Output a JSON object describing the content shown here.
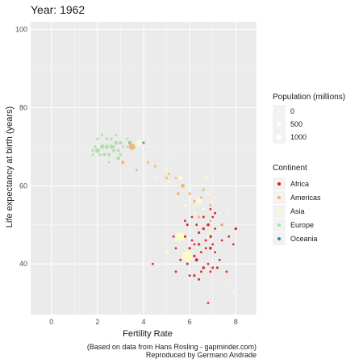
{
  "chart_data": {
    "type": "scatter",
    "title": "Year: 1962",
    "xlabel": "Fertility Rate",
    "ylabel": "Life expectancy at birth (years)",
    "xlim": [
      -0.9,
      8.9
    ],
    "ylim": [
      27,
      102
    ],
    "x_ticks": [
      0,
      2,
      4,
      6,
      8
    ],
    "y_ticks": [
      40,
      60,
      80,
      100
    ],
    "grid": true,
    "legend_position": "right",
    "size_legend": {
      "title": "Population (millions)",
      "entries": [
        {
          "label": "0",
          "value": 0
        },
        {
          "label": "500",
          "value": 500
        },
        {
          "label": "1000",
          "value": 1000
        }
      ]
    },
    "color_legend": {
      "title": "Continent",
      "entries": [
        {
          "label": "Africa",
          "color": "#d7191c"
        },
        {
          "label": "Americas",
          "color": "#fdae61"
        },
        {
          "label": "Asia",
          "color": "#ffffbf"
        },
        {
          "label": "Europe",
          "color": "#abdda4"
        },
        {
          "label": "Oceania",
          "color": "#2b83ba"
        }
      ]
    },
    "caption": [
      "(Based on data from Hans Rosling - gapminder.com)",
      "Reproduced by Germano Andrade"
    ],
    "series": [
      {
        "name": "Africa",
        "color": "#d7191c",
        "points": [
          [
            6.8,
            30
          ],
          [
            6.4,
            36
          ],
          [
            6.5,
            38
          ],
          [
            6.2,
            37
          ],
          [
            6.9,
            38
          ],
          [
            6.0,
            37
          ],
          [
            7.0,
            39
          ],
          [
            7.2,
            39
          ],
          [
            6.6,
            39
          ],
          [
            5.4,
            38
          ],
          [
            7.6,
            38
          ],
          [
            5.9,
            40
          ],
          [
            6.3,
            41
          ],
          [
            6.2,
            42
          ],
          [
            6.8,
            40
          ],
          [
            7.3,
            41
          ],
          [
            4.4,
            40
          ],
          [
            5.6,
            41
          ],
          [
            6.5,
            43
          ],
          [
            6.9,
            44
          ],
          [
            7.1,
            43
          ],
          [
            6.0,
            44
          ],
          [
            5.4,
            44
          ],
          [
            6.7,
            46
          ],
          [
            7.4,
            46
          ],
          [
            6.1,
            46
          ],
          [
            6.9,
            47
          ],
          [
            7.7,
            47
          ],
          [
            5.8,
            47
          ],
          [
            6.4,
            48
          ],
          [
            7.1,
            49
          ],
          [
            6.6,
            49
          ],
          [
            5.9,
            50
          ],
          [
            6.8,
            50
          ],
          [
            7.4,
            50
          ],
          [
            6.3,
            50
          ],
          [
            7.0,
            52
          ],
          [
            7.1,
            53
          ],
          [
            6.1,
            52
          ],
          [
            5.8,
            51
          ],
          [
            6.6,
            52
          ],
          [
            6.9,
            54
          ],
          [
            7.0,
            45
          ],
          [
            6.4,
            45
          ],
          [
            5.3,
            47
          ],
          [
            6.2,
            45
          ],
          [
            6.7,
            44
          ],
          [
            7.9,
            45
          ],
          [
            8.0,
            49
          ]
        ],
        "pops": [
          1,
          2,
          1,
          3,
          1,
          1,
          2,
          3,
          8,
          1,
          1,
          2,
          20,
          5,
          1,
          1,
          1,
          2,
          1,
          10,
          1,
          4,
          1,
          2,
          1,
          1,
          10,
          1,
          3,
          4,
          1,
          6,
          3,
          10,
          2,
          1,
          1,
          1,
          1,
          1,
          2,
          1,
          1,
          5,
          1,
          1,
          1,
          1,
          6
        ]
      },
      {
        "name": "Americas",
        "color": "#fdae61",
        "points": [
          [
            3.5,
            70
          ],
          [
            3.1,
            66
          ],
          [
            4.2,
            66
          ],
          [
            3.7,
            64
          ],
          [
            4.5,
            65
          ],
          [
            5.1,
            63
          ],
          [
            5.0,
            62
          ],
          [
            5.7,
            60
          ],
          [
            5.5,
            58
          ],
          [
            6.0,
            58
          ],
          [
            6.2,
            56
          ],
          [
            6.6,
            59
          ],
          [
            5.4,
            62
          ],
          [
            6.5,
            57
          ],
          [
            6.9,
            55
          ],
          [
            6.4,
            52
          ],
          [
            6.9,
            51
          ],
          [
            7.4,
            50
          ]
        ],
        "pops": [
          186,
          18,
          1,
          3,
          2,
          1,
          3,
          40,
          10,
          4,
          3,
          3,
          1,
          1,
          2,
          4,
          1,
          1
        ]
      },
      {
        "name": "Asia",
        "color": "#ffffbf",
        "points": [
          [
            5.9,
            42
          ],
          [
            5.6,
            47
          ],
          [
            6.8,
            47
          ],
          [
            6.0,
            57
          ],
          [
            5.8,
            55
          ],
          [
            6.8,
            58
          ],
          [
            6.4,
            56
          ],
          [
            6.3,
            55
          ],
          [
            5.3,
            68
          ],
          [
            5.0,
            64
          ],
          [
            5.6,
            62
          ],
          [
            6.7,
            62
          ],
          [
            4.5,
            62
          ],
          [
            7.3,
            53
          ],
          [
            7.1,
            57
          ],
          [
            6.9,
            48
          ],
          [
            7.6,
            35
          ],
          [
            7.9,
            33
          ],
          [
            5.0,
            43
          ],
          [
            5.4,
            46
          ],
          [
            6.2,
            53
          ],
          [
            6.6,
            54
          ],
          [
            7.0,
            62
          ],
          [
            5.1,
            61
          ],
          [
            7.3,
            49
          ],
          [
            7.7,
            53
          ],
          [
            3.8,
            71
          ],
          [
            4.2,
            72
          ]
        ],
        "pops": [
          665,
          450,
          8,
          3,
          5,
          2,
          100,
          1,
          1,
          1,
          30,
          3,
          1,
          1,
          1,
          2,
          1,
          1,
          20,
          10,
          1,
          1,
          1,
          1,
          1,
          1,
          95,
          1
        ]
      },
      {
        "name": "Europe",
        "color": "#abdda4",
        "points": [
          [
            2.0,
            69
          ],
          [
            2.2,
            70
          ],
          [
            2.4,
            70
          ],
          [
            2.6,
            70
          ],
          [
            2.8,
            71
          ],
          [
            3.0,
            71
          ],
          [
            2.3,
            68
          ],
          [
            2.5,
            68
          ],
          [
            2.7,
            69
          ],
          [
            1.9,
            70
          ],
          [
            2.1,
            68
          ],
          [
            2.9,
            69
          ],
          [
            3.1,
            70
          ],
          [
            3.3,
            72
          ],
          [
            2.4,
            72
          ],
          [
            2.2,
            73
          ],
          [
            2.9,
            67
          ],
          [
            3.0,
            68
          ],
          [
            2.6,
            72
          ],
          [
            1.8,
            69
          ],
          [
            2.0,
            72
          ],
          [
            3.4,
            71
          ],
          [
            2.7,
            70
          ],
          [
            2.8,
            73
          ],
          [
            3.3,
            70
          ],
          [
            1.8,
            68
          ],
          [
            3.6,
            70
          ],
          [
            2.5,
            66
          ]
        ],
        "pops": [
          72,
          52,
          50,
          45,
          35,
          30,
          20,
          15,
          10,
          8,
          7,
          9,
          4,
          3,
          5,
          2,
          30,
          10,
          7,
          5,
          4,
          3,
          9,
          1,
          1,
          1,
          1,
          1
        ]
      },
      {
        "name": "Oceania",
        "color": "#2b83ba",
        "points": [
          [
            3.4,
            71
          ],
          [
            4.0,
            71
          ]
        ],
        "pops": [
          11,
          2
        ]
      }
    ]
  }
}
